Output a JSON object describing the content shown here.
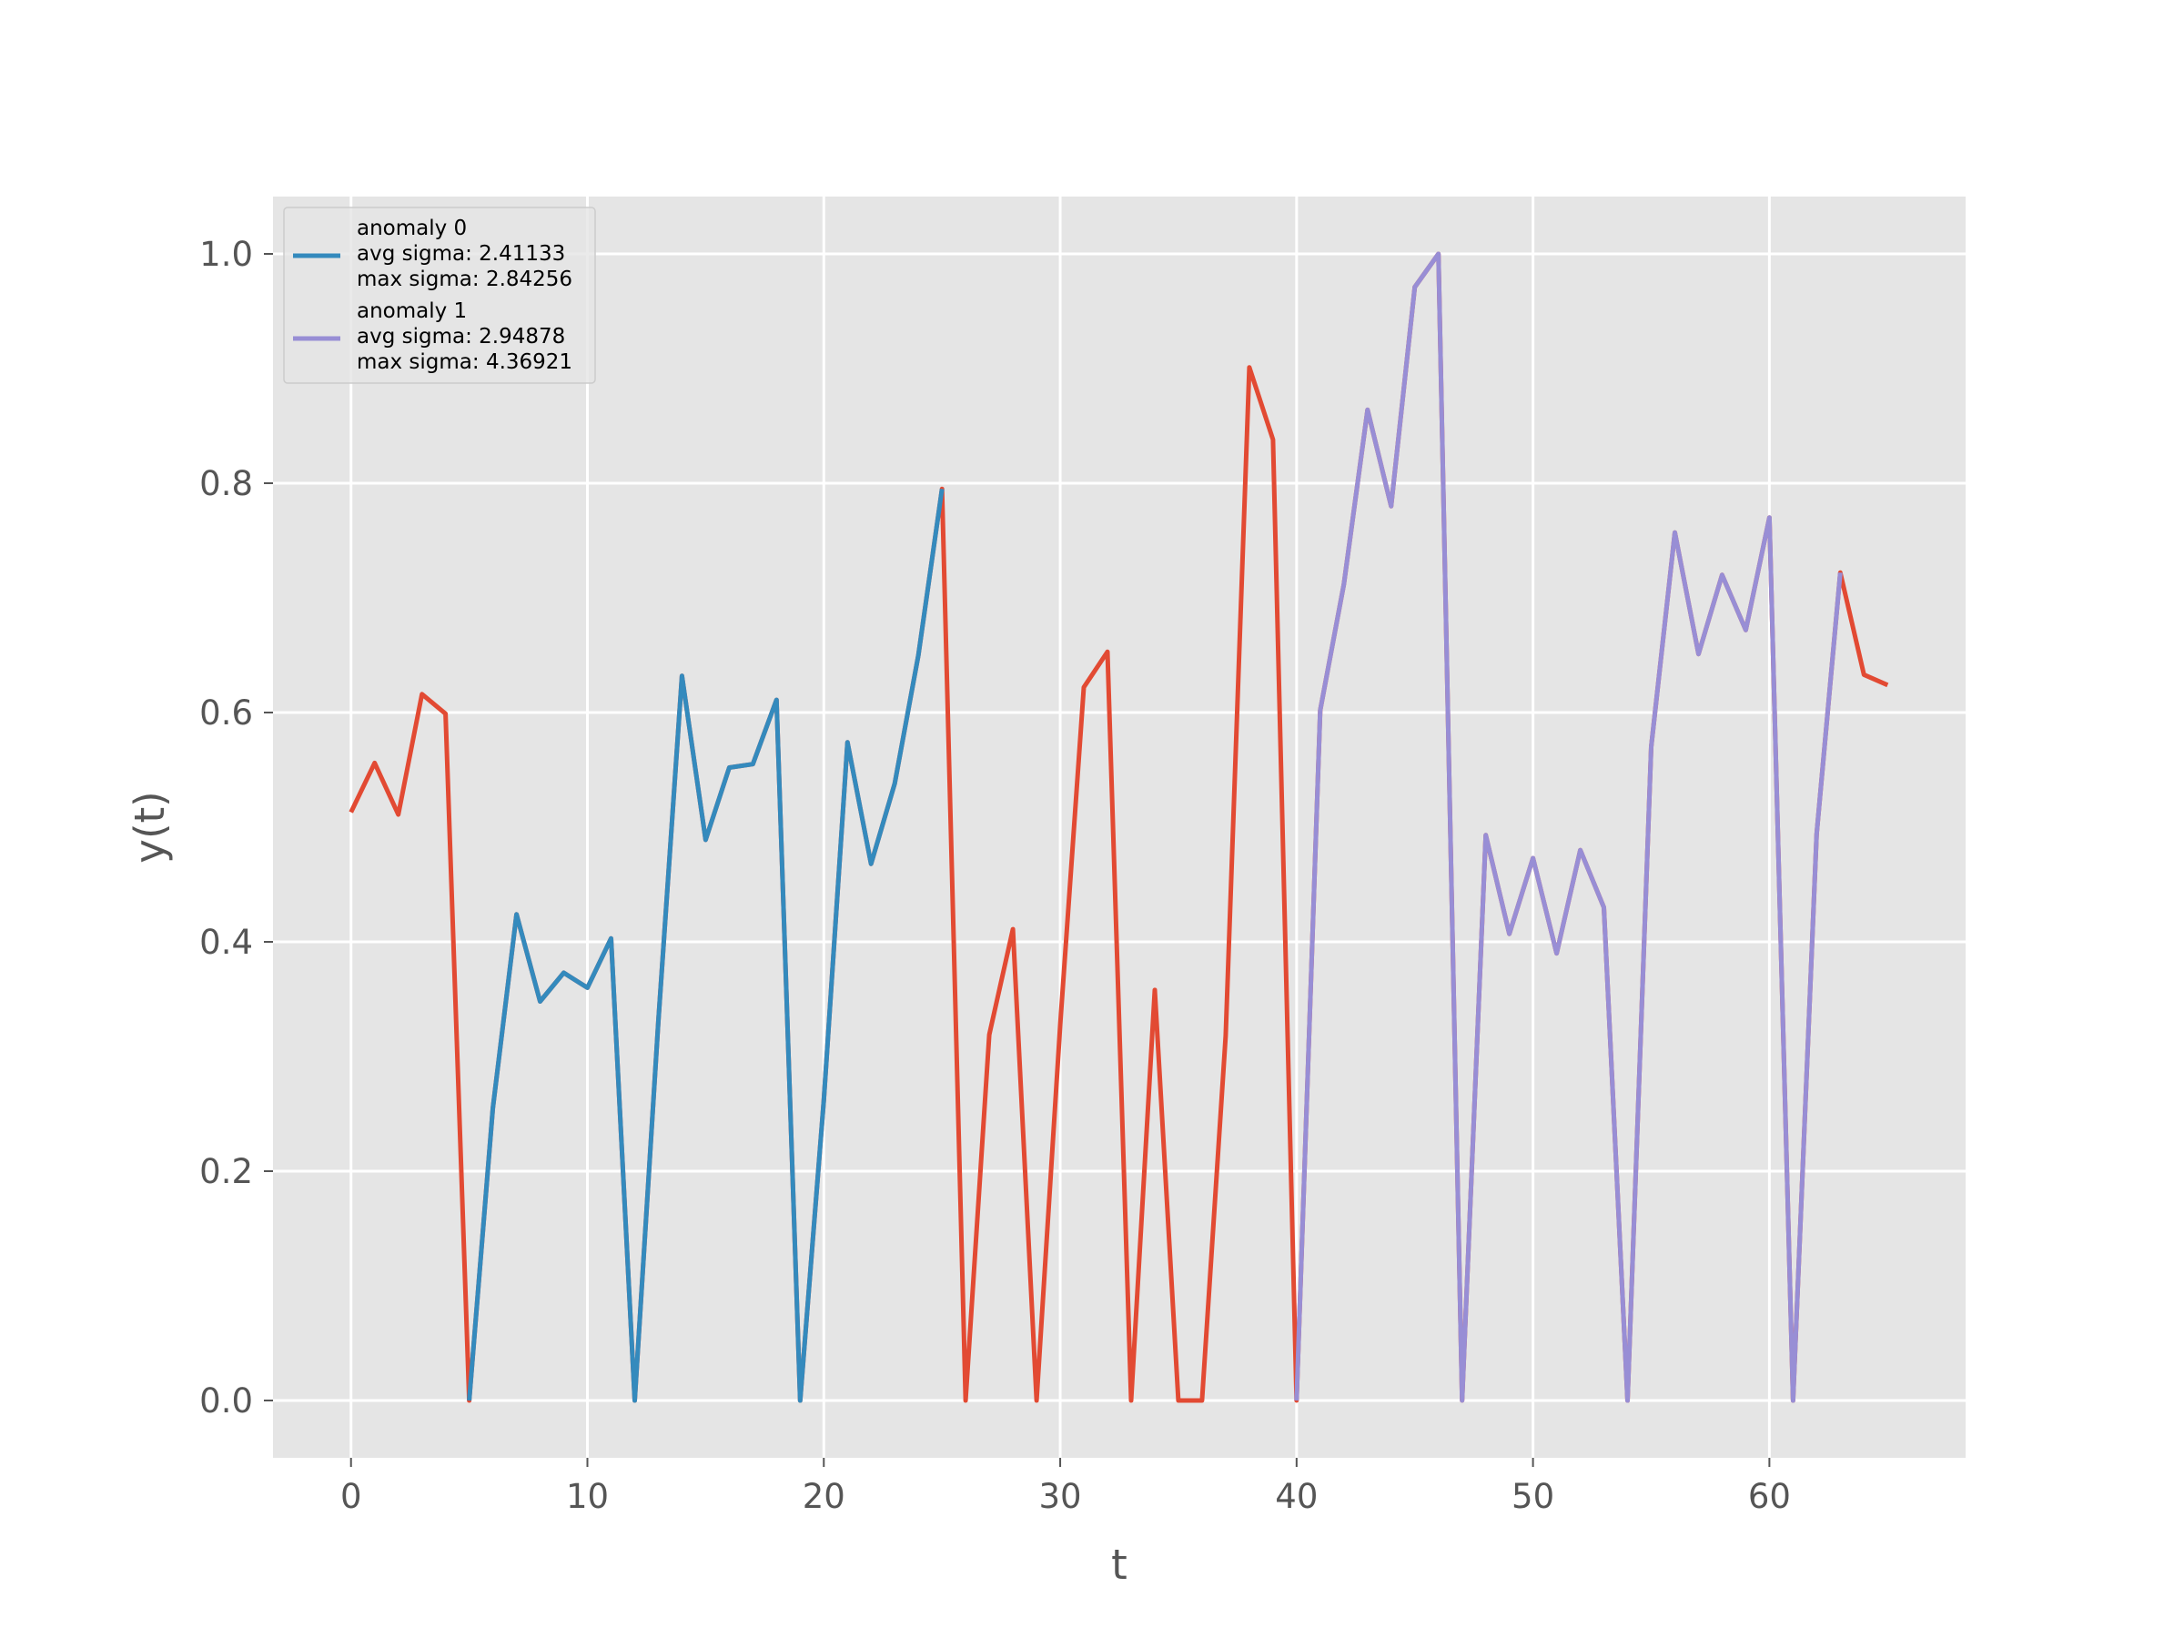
{
  "chart_data": {
    "type": "line",
    "title": "",
    "xlabel": "t",
    "ylabel": "y(t)",
    "xlim": [
      -3.3,
      68.3
    ],
    "ylim": [
      -0.05,
      1.05
    ],
    "xticks": [
      "0",
      "10",
      "20",
      "30",
      "40",
      "50",
      "60"
    ],
    "yticks": [
      "0.0",
      "0.2",
      "0.4",
      "0.6",
      "0.8",
      "1.0"
    ],
    "grid": true,
    "legend_position": "upper-left",
    "colors": {
      "series": "#E24A33",
      "anomaly_0": "#348ABD",
      "anomaly_1": "#988ED5",
      "background": "#E5E5E5",
      "grid": "#FFFFFF"
    },
    "series": [
      {
        "key": "series",
        "x": [
          0,
          1,
          2,
          3,
          4,
          5,
          6,
          7,
          8,
          9,
          10,
          11,
          12,
          13,
          14,
          15,
          16,
          17,
          18,
          19,
          20,
          21,
          22,
          23,
          24,
          25,
          26,
          27,
          28,
          29,
          30,
          31,
          32,
          33,
          34,
          35,
          36,
          37,
          38,
          39,
          40,
          41,
          42,
          43,
          44,
          45,
          46,
          47,
          48,
          49,
          50,
          51,
          52,
          53,
          54,
          55,
          56,
          57,
          58,
          59,
          60,
          61,
          62,
          63,
          64,
          65
        ],
        "values": [
          0.513,
          0.556,
          0.511,
          0.616,
          0.599,
          0.0,
          0.255,
          0.424,
          0.348,
          0.373,
          0.36,
          0.403,
          0.0,
          0.33,
          0.632,
          0.489,
          0.552,
          0.555,
          0.611,
          0.0,
          0.262,
          0.574,
          0.468,
          0.538,
          0.65,
          0.795,
          0.0,
          0.319,
          0.411,
          0.0,
          0.328,
          0.622,
          0.653,
          0.0,
          0.358,
          0.0,
          0.0,
          0.318,
          0.901,
          0.838,
          0.0,
          0.602,
          0.712,
          0.864,
          0.78,
          0.971,
          1.0,
          0.0,
          0.493,
          0.407,
          0.473,
          0.39,
          0.48,
          0.43,
          0.0,
          0.57,
          0.757,
          0.651,
          0.72,
          0.672,
          0.77,
          0.0,
          0.494,
          0.722,
          0.633,
          0.624
        ]
      },
      {
        "key": "anomaly_0",
        "x": [
          5,
          6,
          7,
          8,
          9,
          10,
          11,
          12,
          13,
          14,
          15,
          16,
          17,
          18,
          19,
          20,
          21,
          22,
          23,
          24,
          25
        ],
        "values": [
          0.0,
          0.255,
          0.424,
          0.348,
          0.373,
          0.36,
          0.403,
          0.0,
          0.33,
          0.632,
          0.489,
          0.552,
          0.555,
          0.611,
          0.0,
          0.262,
          0.574,
          0.468,
          0.538,
          0.65,
          0.795
        ]
      },
      {
        "key": "anomaly_1",
        "x": [
          40,
          41,
          42,
          43,
          44,
          45,
          46,
          47,
          48,
          49,
          50,
          51,
          52,
          53,
          54,
          55,
          56,
          57,
          58,
          59,
          60,
          61,
          62,
          63
        ],
        "values": [
          0.0,
          0.602,
          0.712,
          0.864,
          0.78,
          0.971,
          1.0,
          0.0,
          0.493,
          0.407,
          0.473,
          0.39,
          0.48,
          0.43,
          0.0,
          0.57,
          0.757,
          0.651,
          0.72,
          0.672,
          0.77,
          0.0,
          0.494,
          0.722
        ]
      }
    ],
    "legend": [
      {
        "key": "anomaly_0",
        "lines": [
          "anomaly 0",
          "avg sigma: 2.41133",
          "max sigma: 2.84256"
        ]
      },
      {
        "key": "anomaly_1",
        "lines": [
          "anomaly 1",
          "avg sigma: 2.94878",
          "max sigma: 4.36921"
        ]
      }
    ]
  }
}
